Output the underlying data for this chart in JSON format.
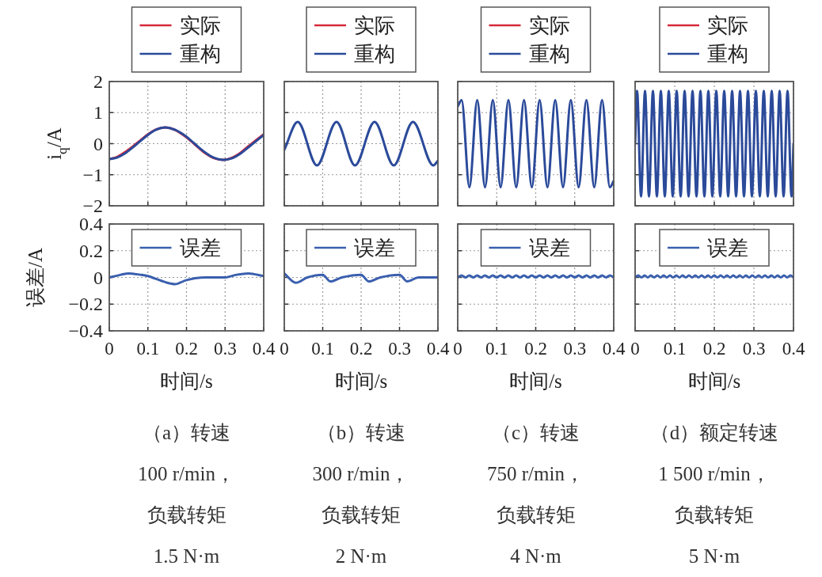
{
  "chart_data": [
    {
      "type": "line",
      "ylabel": "i$_{q}$/A",
      "xlim": [
        0,
        0.4
      ],
      "ylim": [
        -2,
        2
      ],
      "xticks": [
        0,
        0.1,
        0.2,
        0.3,
        0.4
      ],
      "yticks": [
        {
          "value": -2,
          "label": "−2"
        },
        {
          "value": -1,
          "label": "−1"
        },
        0,
        1,
        2
      ],
      "grid": true,
      "legend": "top",
      "tick_labels": "y",
      "x": [
        0,
        0.02,
        0.04,
        0.06,
        0.08,
        0.1,
        0.12,
        0.145,
        0.17,
        0.19,
        0.21,
        0.23,
        0.25,
        0.27,
        0.295,
        0.32,
        0.34,
        0.36,
        0.38,
        0.4
      ],
      "series": [
        {
          "name": "实际",
          "color": "#d62839",
          "values": [
            -0.5,
            -0.43,
            -0.28,
            -0.1,
            0.1,
            0.3,
            0.45,
            0.52,
            0.44,
            0.29,
            0.1,
            -0.12,
            -0.32,
            -0.46,
            -0.52,
            -0.44,
            -0.29,
            -0.09,
            0.11,
            0.3
          ]
        },
        {
          "name": "重构",
          "color": "#2b4a9a",
          "values": [
            -0.5,
            -0.45,
            -0.32,
            -0.13,
            0.08,
            0.28,
            0.44,
            0.52,
            0.45,
            0.31,
            0.12,
            -0.1,
            -0.3,
            -0.45,
            -0.52,
            -0.46,
            -0.32,
            -0.12,
            0.08,
            0.28
          ]
        }
      ]
    },
    {
      "type": "line",
      "xlim": [
        0,
        0.4
      ],
      "ylim": [
        -2,
        2
      ],
      "xticks": [
        0,
        0.1,
        0.2,
        0.3,
        0.4
      ],
      "yticks": [
        -2,
        -1,
        0,
        1,
        2
      ],
      "grid": true,
      "legend": "top",
      "tick_labels": false,
      "x": [
        0,
        0.035,
        0.085,
        0.136,
        0.184,
        0.235,
        0.285,
        0.335,
        0.388,
        0.4
      ],
      "series": [
        {
          "name": "实际",
          "color": "#d62839",
          "values": [
            null,
            null,
            null,
            null,
            null,
            null,
            null,
            null,
            null,
            null
          ]
        },
        {
          "name": "重构",
          "color": "#2b4a9a",
          "values": [
            -0.2,
            0.7,
            -0.7,
            0.7,
            -0.7,
            0.7,
            -0.7,
            0.7,
            -0.7,
            -0.55
          ]
        }
      ]
    },
    {
      "type": "line",
      "xlim": [
        0,
        0.4
      ],
      "ylim": [
        -2,
        2
      ],
      "xticks": [
        0,
        0.1,
        0.2,
        0.3,
        0.4
      ],
      "yticks": [
        -2,
        -1,
        0,
        1,
        2
      ],
      "grid": true,
      "legend": "top",
      "tick_labels": false,
      "x": [
        0,
        0.01,
        0.03,
        0.05,
        0.07,
        0.09,
        0.11,
        0.13,
        0.15,
        0.17,
        0.19,
        0.21,
        0.23,
        0.25,
        0.27,
        0.29,
        0.31,
        0.33,
        0.35,
        0.37,
        0.39,
        0.4
      ],
      "series": [
        {
          "name": "实际",
          "color": "#d62839",
          "values": [
            null,
            null,
            null,
            null,
            null,
            null,
            null,
            null,
            null,
            null,
            null,
            null,
            null,
            null,
            null,
            null,
            null,
            null,
            null,
            null,
            null,
            null
          ]
        },
        {
          "name": "重构",
          "color": "#2b4a9a",
          "values": [
            1.2,
            1.4,
            -1.4,
            1.4,
            -1.4,
            1.4,
            -1.4,
            1.4,
            -1.4,
            1.4,
            -1.4,
            1.4,
            -1.4,
            1.4,
            -1.4,
            1.4,
            -1.4,
            1.4,
            -1.4,
            1.4,
            -1.4,
            -1.2
          ]
        }
      ]
    },
    {
      "type": "line",
      "xlim": [
        0,
        0.4
      ],
      "ylim": [
        -2,
        2
      ],
      "xticks": [
        0,
        0.1,
        0.2,
        0.3,
        0.4
      ],
      "yticks": [
        -2,
        -1,
        0,
        1,
        2
      ],
      "grid": true,
      "legend": "top",
      "tick_labels": false,
      "x": [
        0,
        0.005,
        0.015,
        0.025,
        0.035,
        0.045,
        0.055,
        0.065,
        0.075,
        0.085,
        0.095,
        0.105,
        0.115,
        0.125,
        0.135,
        0.145,
        0.155,
        0.165,
        0.175,
        0.185,
        0.195,
        0.205,
        0.215,
        0.225,
        0.235,
        0.245,
        0.255,
        0.265,
        0.275,
        0.285,
        0.295,
        0.305,
        0.315,
        0.325,
        0.335,
        0.345,
        0.355,
        0.365,
        0.375,
        0.385,
        0.395,
        0.4
      ],
      "series": [
        {
          "name": "实际",
          "color": "#d62839",
          "values": [
            null,
            null,
            null,
            null,
            null,
            null,
            null,
            null,
            null,
            null,
            null,
            null,
            null,
            null,
            null,
            null,
            null,
            null,
            null,
            null,
            null,
            null,
            null,
            null,
            null,
            null,
            null,
            null,
            null,
            null,
            null,
            null,
            null,
            null,
            null,
            null,
            null,
            null,
            null,
            null,
            null,
            null
          ]
        },
        {
          "name": "重构",
          "color": "#2b4a9a",
          "values": [
            0,
            1.7,
            -1.7,
            1.7,
            -1.7,
            1.7,
            -1.7,
            1.7,
            -1.7,
            1.7,
            -1.7,
            1.7,
            -1.7,
            1.7,
            -1.7,
            1.7,
            -1.7,
            1.7,
            -1.7,
            1.7,
            -1.7,
            1.7,
            -1.7,
            1.7,
            -1.7,
            1.7,
            -1.7,
            1.7,
            -1.7,
            1.7,
            -1.7,
            1.7,
            -1.7,
            1.7,
            -1.7,
            1.7,
            -1.7,
            1.7,
            -1.7,
            1.7,
            -1.7,
            0
          ]
        }
      ]
    },
    {
      "type": "line",
      "ylabel": "误差/A",
      "xlabel": "时间/s",
      "xlim": [
        0,
        0.4
      ],
      "ylim": [
        -0.4,
        0.4
      ],
      "xticks": [
        0,
        0.1,
        0.2,
        0.3,
        0.4
      ],
      "yticks": [
        {
          "value": -0.4,
          "label": "−0.4"
        },
        {
          "value": -0.2,
          "label": "−0.2"
        },
        0,
        0.2,
        0.4
      ],
      "grid": true,
      "legend": "top",
      "annotations": [
        "（a）转速",
        "100 r/min，",
        "负载转矩",
        "1.5 N·m"
      ],
      "x": [
        0,
        0.03,
        0.05,
        0.08,
        0.1,
        0.12,
        0.15,
        0.17,
        0.2,
        0.25,
        0.3,
        0.33,
        0.36,
        0.4
      ],
      "series": [
        {
          "name": "误差",
          "color": "#3a5fae",
          "values": [
            0,
            0.02,
            0.03,
            0.02,
            0.01,
            -0.01,
            -0.04,
            -0.05,
            -0.02,
            0,
            0,
            0.02,
            0.03,
            0.01
          ]
        }
      ]
    },
    {
      "type": "line",
      "xlabel": "时间/s",
      "xlim": [
        0,
        0.4
      ],
      "ylim": [
        -0.4,
        0.4
      ],
      "xticks": [
        0,
        0.1,
        0.2,
        0.3,
        0.4
      ],
      "yticks": [
        -0.4,
        -0.2,
        0,
        0.2,
        0.4
      ],
      "grid": true,
      "legend": "top",
      "tick_labels": "x",
      "annotations": [
        "（b）转速",
        "300 r/min，",
        "负载转矩",
        "2 N·m"
      ],
      "x": [
        0,
        0.03,
        0.06,
        0.1,
        0.12,
        0.15,
        0.2,
        0.22,
        0.25,
        0.3,
        0.32,
        0.35,
        0.4
      ],
      "series": [
        {
          "name": "误差",
          "color": "#3a5fae",
          "values": [
            0.03,
            -0.04,
            0,
            0.02,
            -0.03,
            0,
            0.02,
            -0.03,
            0,
            0.02,
            -0.03,
            0,
            0
          ]
        }
      ]
    },
    {
      "type": "line",
      "xlabel": "时间/s",
      "xlim": [
        0,
        0.4
      ],
      "ylim": [
        -0.4,
        0.4
      ],
      "xticks": [
        0,
        0.1,
        0.2,
        0.3,
        0.4
      ],
      "yticks": [
        -0.4,
        -0.2,
        0,
        0.2,
        0.4
      ],
      "grid": true,
      "legend": "top",
      "tick_labels": "x",
      "annotations": [
        "（c）转速",
        "750 r/min，",
        "负载转矩",
        "4 N·m"
      ],
      "x": [
        0,
        0.01,
        0.02,
        0.03,
        0.04,
        0.05,
        0.06,
        0.07,
        0.08,
        0.09,
        0.1,
        0.11,
        0.12,
        0.13,
        0.14,
        0.15,
        0.16,
        0.17,
        0.18,
        0.19,
        0.2,
        0.21,
        0.22,
        0.23,
        0.24,
        0.25,
        0.26,
        0.27,
        0.28,
        0.29,
        0.3,
        0.31,
        0.32,
        0.33,
        0.34,
        0.35,
        0.36,
        0.37,
        0.38,
        0.39,
        0.4
      ],
      "series": [
        {
          "name": "误差",
          "color": "#3a5fae",
          "values": [
            0,
            0.015,
            0,
            0.015,
            0,
            0.015,
            0,
            0.015,
            0,
            0.015,
            0,
            0.015,
            0,
            0.015,
            0,
            0.015,
            0,
            0.015,
            0,
            0.015,
            0,
            0.015,
            0,
            0.015,
            0,
            0.015,
            0,
            0.015,
            0,
            0.015,
            0,
            0.015,
            0,
            0.015,
            0,
            0.015,
            0,
            0.015,
            0,
            0.015,
            0
          ]
        }
      ]
    },
    {
      "type": "line",
      "xlabel": "时间/s",
      "xlim": [
        0,
        0.4
      ],
      "ylim": [
        -0.4,
        0.4
      ],
      "xticks": [
        0,
        0.1,
        0.2,
        0.3,
        0.4
      ],
      "yticks": [
        -0.4,
        -0.2,
        0,
        0.2,
        0.4
      ],
      "grid": true,
      "legend": "top",
      "tick_labels": "x",
      "annotations": [
        "（d）额定转速",
        "1 500 r/min，",
        "负载转矩",
        "5 N·m"
      ],
      "x": [
        0,
        0.008,
        0.016,
        0.024,
        0.032,
        0.04,
        0.048,
        0.056,
        0.064,
        0.072,
        0.08,
        0.088,
        0.096,
        0.104,
        0.112,
        0.12,
        0.128,
        0.136,
        0.144,
        0.152,
        0.16,
        0.168,
        0.176,
        0.184,
        0.192,
        0.2,
        0.208,
        0.216,
        0.224,
        0.232,
        0.24,
        0.248,
        0.256,
        0.264,
        0.272,
        0.28,
        0.288,
        0.296,
        0.304,
        0.312,
        0.32,
        0.328,
        0.336,
        0.344,
        0.352,
        0.36,
        0.368,
        0.376,
        0.384,
        0.392,
        0.4
      ],
      "series": [
        {
          "name": "误差",
          "color": "#3a5fae",
          "values": [
            0,
            0.015,
            0,
            0.015,
            0,
            0.015,
            0,
            0.015,
            0,
            0.015,
            0,
            0.015,
            0,
            0.015,
            0,
            0.015,
            0,
            0.015,
            0,
            0.015,
            0,
            0.015,
            0,
            0.015,
            0,
            0.015,
            0,
            0.015,
            0,
            0.015,
            0,
            0.015,
            0,
            0.015,
            0,
            0.015,
            0,
            0.015,
            0,
            0.015,
            0,
            0.015,
            0,
            0.015,
            0,
            0.015,
            0,
            0.015,
            0,
            0.015,
            0
          ]
        }
      ]
    }
  ]
}
